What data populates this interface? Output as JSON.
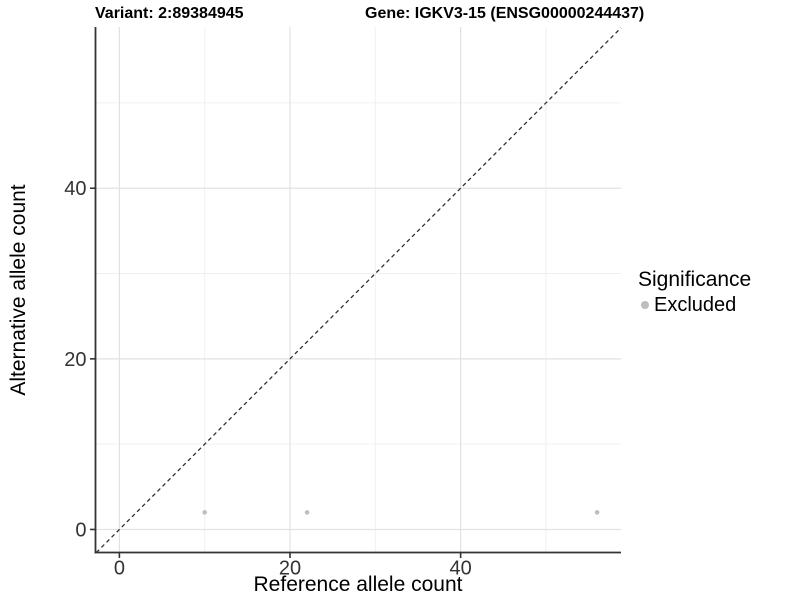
{
  "chart_data": {
    "type": "scatter",
    "title_left": "Variant: 2:89384945",
    "title_right": "Gene: IGKV3-15 (ENSG00000244437)",
    "xlabel": "Reference allele count",
    "ylabel": "Alternative allele count",
    "xlim": [
      -2.8,
      58.8
    ],
    "ylim": [
      -2.7,
      58.9
    ],
    "x_major_ticks": [
      0,
      20,
      40
    ],
    "x_minor_ticks": [
      10,
      30,
      50
    ],
    "y_major_ticks": [
      0,
      20,
      40
    ],
    "y_minor_ticks": [
      10,
      30,
      50
    ],
    "points": [
      {
        "x": 10,
        "y": 2,
        "significance": "Excluded"
      },
      {
        "x": 22,
        "y": 2,
        "significance": "Excluded"
      },
      {
        "x": 56,
        "y": 2,
        "significance": "Excluded"
      }
    ],
    "identity_line": {
      "slope": 1,
      "intercept": 0,
      "style": "dashed"
    },
    "grid": "major-and-minor",
    "colors": {
      "point": "#bebebe",
      "grid_major": "#e2e2e2",
      "grid_minor": "#f0f0f0",
      "axis_line": "#333333",
      "tick_label": "#333333",
      "dashed_line": "#333333"
    }
  },
  "legend": {
    "title": "Significance",
    "position": "right",
    "items": [
      {
        "label": "Excluded",
        "color": "#bebebe"
      }
    ]
  }
}
